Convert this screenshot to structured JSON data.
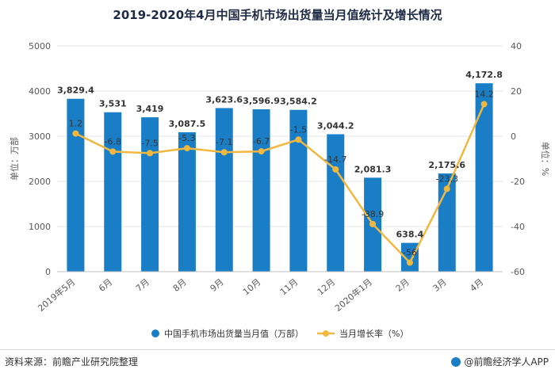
{
  "title": "2019-2020年4月中国手机市场出货量当月值统计及增长情况",
  "footer": {
    "source": "资料来源：前瞻产业研究院整理",
    "brand": "@前瞻经济学人APP"
  },
  "colors": {
    "bar": "#1a7ec6",
    "line": "#f0b840",
    "axis_text": "#595959",
    "grid": "#e6e6e6"
  },
  "chart_data": {
    "type": "bar",
    "categories": [
      "2019年5月",
      "6月",
      "7月",
      "8月",
      "9月",
      "10月",
      "11月",
      "12月",
      "2020年1月",
      "2月",
      "3月",
      "4月"
    ],
    "series": [
      {
        "name": "中国手机市场出货量当月值（万部）",
        "type": "bar",
        "axis": "left",
        "values": [
          3829.4,
          3531,
          3419,
          3087.5,
          3623.6,
          3596.9,
          3584.2,
          3044.2,
          2081.3,
          638.4,
          2175.6,
          4172.8
        ],
        "labels": [
          "3,829.4",
          "3,531",
          "3,419",
          "3,087.5",
          "3,623.6",
          "3,596.9",
          "3,584.2",
          "3,044.2",
          "2,081.3",
          "638.4",
          "2,175.6",
          "4,172.8"
        ]
      },
      {
        "name": "当月增长率（%）",
        "type": "line",
        "axis": "right",
        "values": [
          1.2,
          -6.8,
          -7.5,
          -5.3,
          -7.1,
          -6.7,
          -1.5,
          -14.7,
          -38.9,
          -56,
          -23.3,
          14.2
        ],
        "labels": [
          "1.2",
          "-6.8",
          "-7.5",
          "-5.3",
          "-7.1",
          "-6.7",
          "-1.5",
          "-14.7",
          "-38.9",
          "-56",
          "-23.3",
          "14.2"
        ]
      }
    ],
    "y_left": {
      "label": "单位：万部",
      "lim": [
        0,
        5000
      ],
      "ticks": [
        "0",
        "1000",
        "2000",
        "3000",
        "4000",
        "5000"
      ],
      "tick_values": [
        0,
        1000,
        2000,
        3000,
        4000,
        5000
      ]
    },
    "y_right": {
      "label": "单位：%",
      "lim": [
        -60,
        40
      ],
      "ticks": [
        "-60",
        "-40",
        "-20",
        "0",
        "20",
        "40"
      ],
      "tick_values": [
        -60,
        -40,
        -20,
        0,
        20,
        40
      ]
    },
    "grid": true,
    "legend": "bottom"
  }
}
